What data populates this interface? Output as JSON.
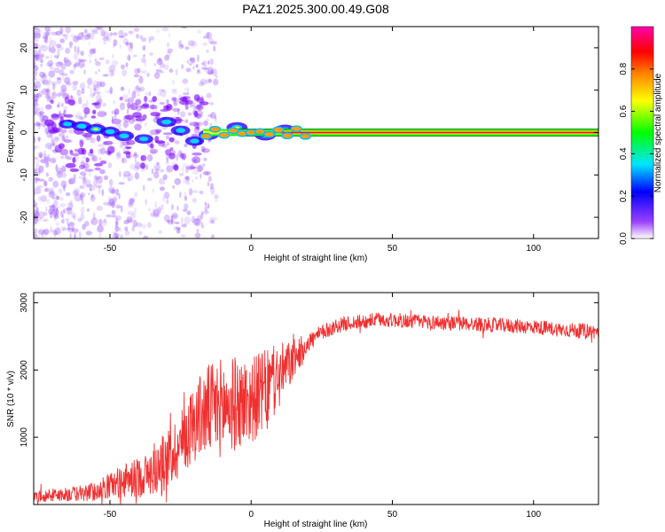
{
  "figure_title": "PAZ1.2025.300.00.49.G08",
  "chart_data": [
    {
      "type": "heatmap",
      "title": "PAZ1.2025.300.00.49.G08",
      "xlabel": "Height of straight line (km)",
      "ylabel": "Frequency (Hz)",
      "xlim": [
        -77,
        123
      ],
      "ylim": [
        -25,
        25
      ],
      "xticks": [
        -50,
        0,
        50,
        100
      ],
      "yticks": [
        -20,
        -10,
        0,
        10,
        20
      ],
      "colorbar": {
        "label": "Normalized spectral amplitude",
        "range": [
          0.0,
          1.0
        ],
        "ticks": [
          0.0,
          0.2,
          0.4,
          0.6,
          0.8
        ],
        "tick_labels": [
          "0.0",
          "0.2",
          "0.4",
          "0.6",
          "0.8"
        ],
        "colormap": [
          "#ffffff",
          "#7a00ff",
          "#0000ff",
          "#00e5ff",
          "#00ff00",
          "#ffff00",
          "#ff8000",
          "#ff0000",
          "#ff00aa"
        ]
      },
      "carrier_line": {
        "frequency_hz": 0,
        "start_km": -17,
        "end_km": 123,
        "envelope_hz": [
          -0.8,
          0.8
        ],
        "amplitude": 0.95
      },
      "features": [
        {
          "height_km": -65,
          "freq_hz": 2,
          "amplitude": 0.35
        },
        {
          "height_km": -60,
          "freq_hz": 1.5,
          "amplitude": 0.5
        },
        {
          "height_km": -55,
          "freq_hz": 0.8,
          "amplitude": 0.6
        },
        {
          "height_km": -50,
          "freq_hz": 0.2,
          "amplitude": 0.5
        },
        {
          "height_km": -45,
          "freq_hz": -0.8,
          "amplitude": 0.55
        },
        {
          "height_km": -38,
          "freq_hz": -1.5,
          "amplitude": 0.45
        },
        {
          "height_km": -30,
          "freq_hz": 2.5,
          "amplitude": 0.55
        },
        {
          "height_km": -25,
          "freq_hz": 0.5,
          "amplitude": 0.5
        },
        {
          "height_km": -20,
          "freq_hz": -2,
          "amplitude": 0.45
        },
        {
          "height_km": -15,
          "freq_hz": -0.5,
          "amplitude": 0.6
        },
        {
          "height_km": -5,
          "freq_hz": 1.2,
          "amplitude": 0.65
        },
        {
          "height_km": 5,
          "freq_hz": -0.6,
          "amplitude": 0.65
        },
        {
          "height_km": 12,
          "freq_hz": 0.6,
          "amplitude": 0.7
        }
      ]
    },
    {
      "type": "line",
      "xlabel": "Height of straight line (km)",
      "ylabel": "SNR (10 * v/v)",
      "xlim": [
        -77,
        123
      ],
      "ylim": [
        0,
        3150
      ],
      "xticks": [
        -50,
        0,
        50,
        100
      ],
      "yticks": [
        1000,
        2000,
        3000
      ],
      "series": [
        {
          "name": "SNR",
          "color": "#f03030",
          "x": [
            -77,
            -70,
            -65,
            -60,
            -55,
            -50,
            -45,
            -40,
            -35,
            -30,
            -25,
            -20,
            -15,
            -10,
            -5,
            0,
            5,
            10,
            15,
            20,
            25,
            30,
            35,
            40,
            45,
            50,
            55,
            60,
            65,
            70,
            75,
            80,
            85,
            90,
            95,
            100,
            105,
            110,
            115,
            120,
            123
          ],
          "y": [
            120,
            140,
            150,
            160,
            200,
            280,
            350,
            400,
            480,
            650,
            900,
            1250,
            1400,
            1450,
            1500,
            1550,
            1700,
            1900,
            2150,
            2400,
            2550,
            2650,
            2700,
            2720,
            2750,
            2740,
            2730,
            2720,
            2710,
            2700,
            2690,
            2680,
            2670,
            2660,
            2650,
            2640,
            2620,
            2600,
            2590,
            2580,
            2560
          ],
          "noise_amplitude": [
            80,
            100,
            110,
            120,
            150,
            200,
            250,
            300,
            350,
            450,
            500,
            600,
            700,
            750,
            700,
            650,
            600,
            500,
            300,
            150,
            120,
            110,
            110,
            110,
            110,
            110,
            110,
            110,
            110,
            110,
            110,
            110,
            110,
            110,
            110,
            110,
            110,
            110,
            110,
            110,
            110
          ]
        }
      ]
    }
  ]
}
